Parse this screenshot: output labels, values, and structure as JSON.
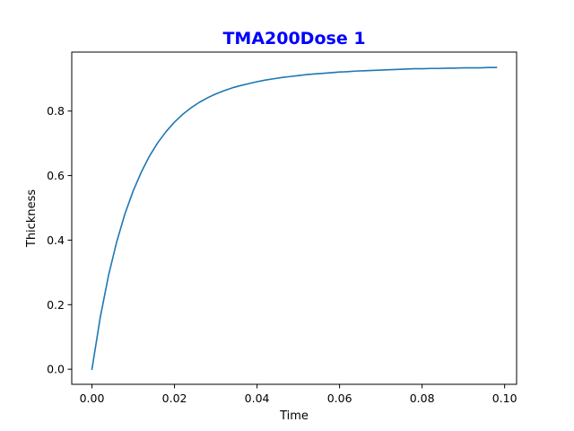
{
  "chart_data": {
    "type": "line",
    "title": "TMA200Dose 1",
    "title_color": "#0000ff",
    "xlabel": "Time",
    "ylabel": "Thickness",
    "xlim": [
      -0.0049,
      0.1029
    ],
    "ylim": [
      -0.0468,
      0.9828
    ],
    "xticks": [
      0.0,
      0.02,
      0.04,
      0.06,
      0.08,
      0.1
    ],
    "xtick_labels": [
      "0.00",
      "0.02",
      "0.04",
      "0.06",
      "0.08",
      "0.10"
    ],
    "yticks": [
      0.0,
      0.2,
      0.4,
      0.6,
      0.8
    ],
    "ytick_labels": [
      "0.0",
      "0.2",
      "0.4",
      "0.6",
      "0.8"
    ],
    "grid": false,
    "series": [
      {
        "color": "#1f77b4",
        "x": [
          0.0,
          0.002,
          0.004,
          0.006,
          0.008,
          0.01,
          0.012,
          0.014,
          0.016,
          0.018,
          0.02,
          0.022,
          0.024,
          0.026,
          0.028,
          0.03,
          0.032,
          0.034,
          0.036,
          0.038,
          0.04,
          0.042,
          0.044,
          0.046,
          0.048,
          0.05,
          0.052,
          0.054,
          0.056,
          0.058,
          0.06,
          0.062,
          0.064,
          0.066,
          0.068,
          0.07,
          0.072,
          0.074,
          0.076,
          0.078,
          0.08,
          0.082,
          0.084,
          0.086,
          0.088,
          0.09,
          0.092,
          0.094,
          0.096,
          0.098
        ],
        "y": [
          0.0,
          0.16,
          0.29,
          0.395,
          0.482,
          0.553,
          0.612,
          0.662,
          0.703,
          0.737,
          0.766,
          0.79,
          0.81,
          0.827,
          0.841,
          0.853,
          0.863,
          0.872,
          0.879,
          0.885,
          0.891,
          0.896,
          0.9,
          0.904,
          0.907,
          0.91,
          0.913,
          0.915,
          0.917,
          0.919,
          0.921,
          0.922,
          0.924,
          0.925,
          0.926,
          0.927,
          0.928,
          0.929,
          0.93,
          0.931,
          0.931,
          0.932,
          0.932,
          0.933,
          0.933,
          0.934,
          0.934,
          0.934,
          0.935,
          0.935
        ]
      }
    ]
  }
}
